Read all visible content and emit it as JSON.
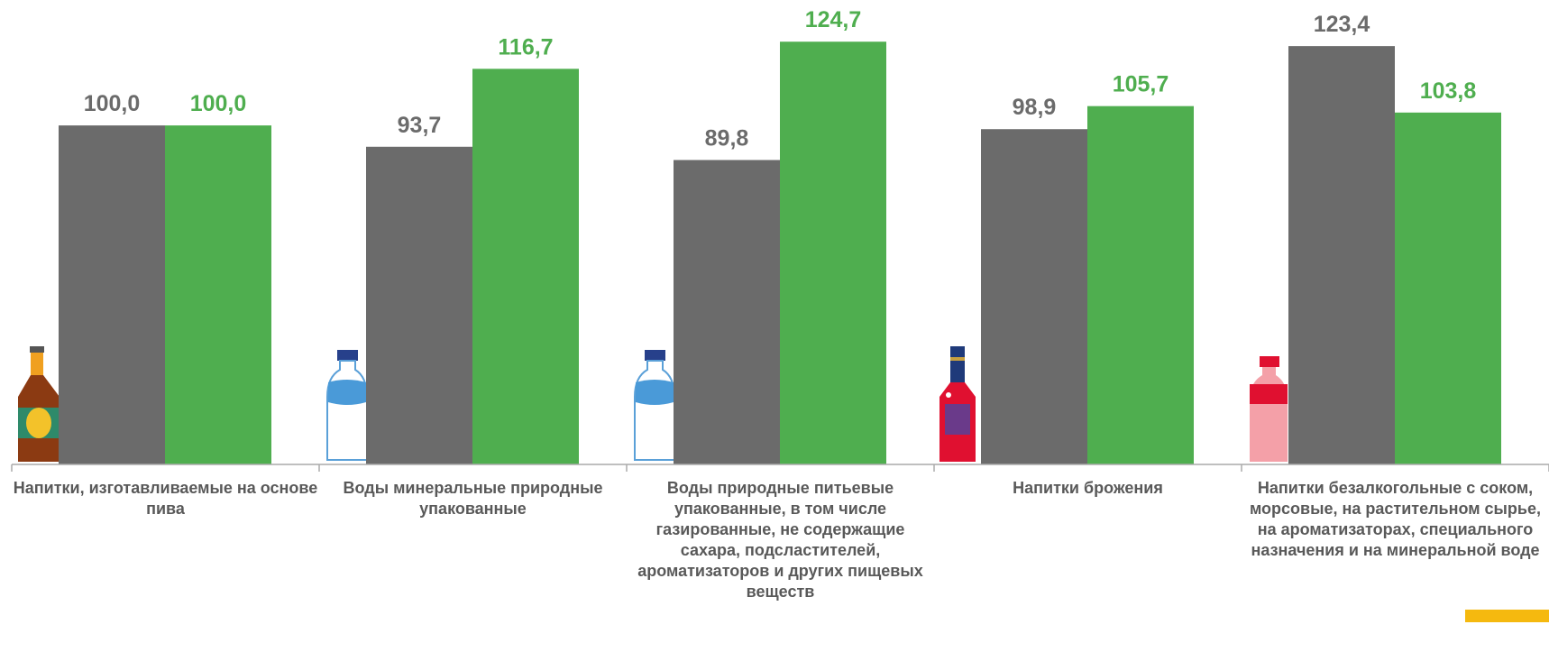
{
  "chart_data": {
    "type": "bar",
    "categories": [
      "Напитки, изготавливаемые на основе пива",
      "Воды минеральные природные упакованные",
      "Воды природные питьевые упакованные, в том числе газированные, не содержащие сахара, подсластителей, ароматизаторов и других пищевых веществ",
      "Напитки брожения",
      "Напитки безалкогольные с соком, морсовые, на растительном сырье, на ароматизаторах, специального назначения и на минеральной воде"
    ],
    "series": [
      {
        "color": "#6b6b6b",
        "values": [
          100.0,
          93.7,
          89.8,
          98.9,
          123.4
        ],
        "value_labels": [
          "100,0",
          "93,7",
          "89,8",
          "98,9",
          "123,4"
        ]
      },
      {
        "color": "#4fae4f",
        "values": [
          100.0,
          116.7,
          124.7,
          105.7,
          103.8
        ],
        "value_labels": [
          "100,0",
          "116,7",
          "124,7",
          "105,7",
          "103,8"
        ]
      }
    ],
    "ylim": [
      0,
      137
    ]
  }
}
